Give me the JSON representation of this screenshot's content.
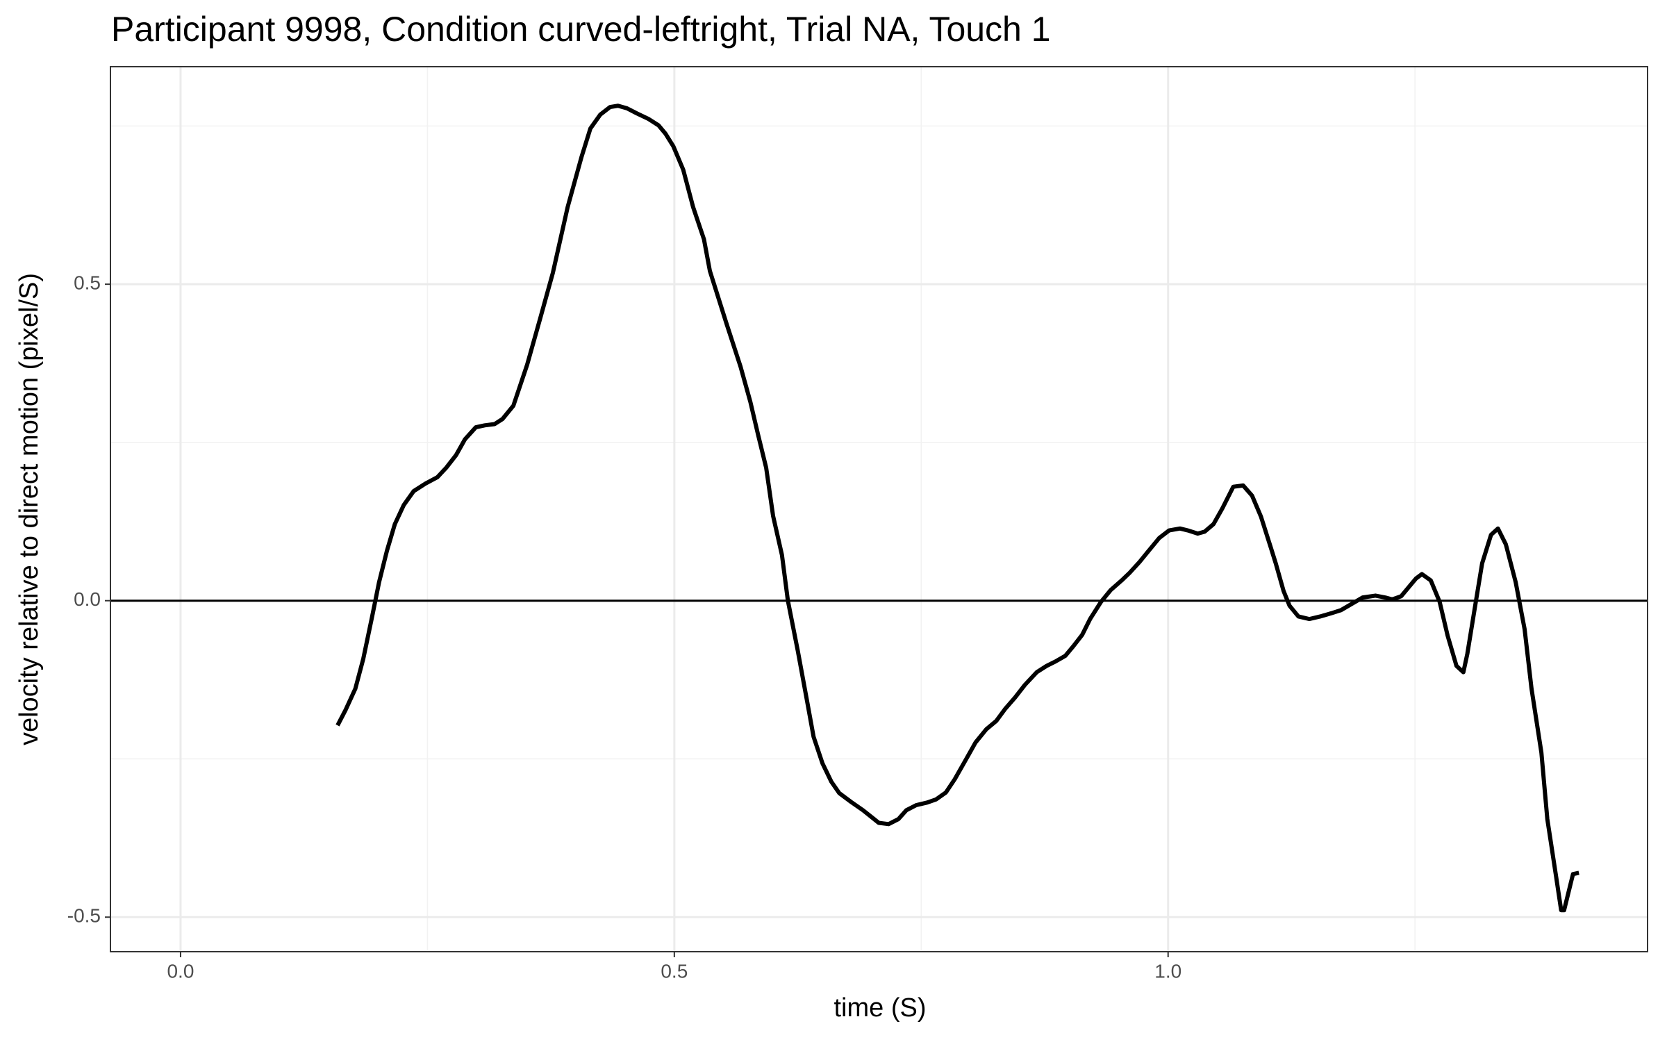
{
  "chart_data": {
    "type": "line",
    "title": "Participant 9998, Condition curved-leftright, Trial NA, Touch 1",
    "x_label": "time (S)",
    "y_label": "velocity relative to direct motion (pixel/S)",
    "x": [
      0.159,
      0.167,
      0.177,
      0.185,
      0.194,
      0.201,
      0.209,
      0.217,
      0.226,
      0.236,
      0.248,
      0.26,
      0.269,
      0.279,
      0.288,
      0.299,
      0.308,
      0.318,
      0.326,
      0.337,
      0.351,
      0.364,
      0.377,
      0.392,
      0.406,
      0.415,
      0.425,
      0.435,
      0.443,
      0.452,
      0.462,
      0.474,
      0.484,
      0.491,
      0.499,
      0.509,
      0.519,
      0.53,
      0.536,
      0.553,
      0.567,
      0.577,
      0.585,
      0.593,
      0.6,
      0.609,
      0.615,
      0.625,
      0.634,
      0.641,
      0.65,
      0.659,
      0.667,
      0.679,
      0.691,
      0.699,
      0.707,
      0.717,
      0.727,
      0.735,
      0.745,
      0.756,
      0.765,
      0.775,
      0.784,
      0.796,
      0.805,
      0.816,
      0.826,
      0.835,
      0.845,
      0.855,
      0.867,
      0.877,
      0.886,
      0.896,
      0.904,
      0.913,
      0.921,
      0.932,
      0.942,
      0.953,
      0.961,
      0.971,
      0.982,
      0.991,
      1.001,
      1.012,
      1.02,
      1.03,
      1.037,
      1.046,
      1.055,
      1.066,
      1.076,
      1.085,
      1.094,
      1.104,
      1.109,
      1.117,
      1.123,
      1.132,
      1.143,
      1.154,
      1.165,
      1.175,
      1.186,
      1.197,
      1.21,
      1.22,
      1.227,
      1.236,
      1.244,
      1.251,
      1.257,
      1.266,
      1.275,
      1.283,
      1.292,
      1.299,
      1.303,
      1.31,
      1.318,
      1.327,
      1.334,
      1.342,
      1.352,
      1.361,
      1.368,
      1.378,
      1.384,
      1.393,
      1.398,
      1.401,
      1.41,
      1.416
    ],
    "values": [
      -0.197,
      -0.173,
      -0.139,
      -0.092,
      -0.025,
      0.029,
      0.079,
      0.121,
      0.151,
      0.173,
      0.185,
      0.195,
      0.21,
      0.23,
      0.255,
      0.274,
      0.277,
      0.279,
      0.287,
      0.308,
      0.373,
      0.445,
      0.518,
      0.622,
      0.701,
      0.746,
      0.768,
      0.78,
      0.782,
      0.778,
      0.77,
      0.761,
      0.751,
      0.738,
      0.718,
      0.681,
      0.622,
      0.571,
      0.521,
      0.437,
      0.37,
      0.314,
      0.261,
      0.21,
      0.134,
      0.072,
      0.0,
      -0.079,
      -0.155,
      -0.215,
      -0.257,
      -0.286,
      -0.304,
      -0.318,
      -0.331,
      -0.341,
      -0.351,
      -0.353,
      -0.345,
      -0.331,
      -0.323,
      -0.319,
      -0.314,
      -0.303,
      -0.282,
      -0.249,
      -0.224,
      -0.203,
      -0.19,
      -0.171,
      -0.153,
      -0.133,
      -0.113,
      -0.103,
      -0.096,
      -0.087,
      -0.072,
      -0.054,
      -0.029,
      -0.002,
      0.017,
      0.032,
      0.044,
      0.061,
      0.082,
      0.099,
      0.111,
      0.114,
      0.111,
      0.106,
      0.109,
      0.121,
      0.146,
      0.18,
      0.182,
      0.166,
      0.133,
      0.084,
      0.059,
      0.015,
      -0.008,
      -0.025,
      -0.029,
      -0.025,
      -0.02,
      -0.015,
      -0.005,
      0.005,
      0.008,
      0.005,
      0.002,
      0.007,
      0.022,
      0.035,
      0.042,
      0.032,
      -0.002,
      -0.055,
      -0.103,
      -0.113,
      -0.084,
      -0.017,
      0.059,
      0.104,
      0.114,
      0.089,
      0.029,
      -0.045,
      -0.139,
      -0.24,
      -0.345,
      -0.437,
      -0.489,
      -0.489,
      -0.432,
      -0.43
    ],
    "color": "#000000",
    "xlim": [
      -0.071,
      1.4855
    ],
    "ylim": [
      -0.5546,
      0.8437
    ],
    "xticks": [
      {
        "value": 0,
        "label": "0.0"
      },
      {
        "value": 0.5,
        "label": "0.5"
      },
      {
        "value": 1,
        "label": "1.0"
      }
    ],
    "yticks": [
      {
        "value": -0.5,
        "label": "-0.5"
      },
      {
        "value": 0,
        "label": "0.0"
      },
      0.5
    ],
    "minor_xticks": [
      0.25,
      0.75,
      1.25
    ],
    "minor_yticks": [
      -0.25,
      0.25,
      0.75
    ],
    "hline": 0,
    "grid": true
  }
}
